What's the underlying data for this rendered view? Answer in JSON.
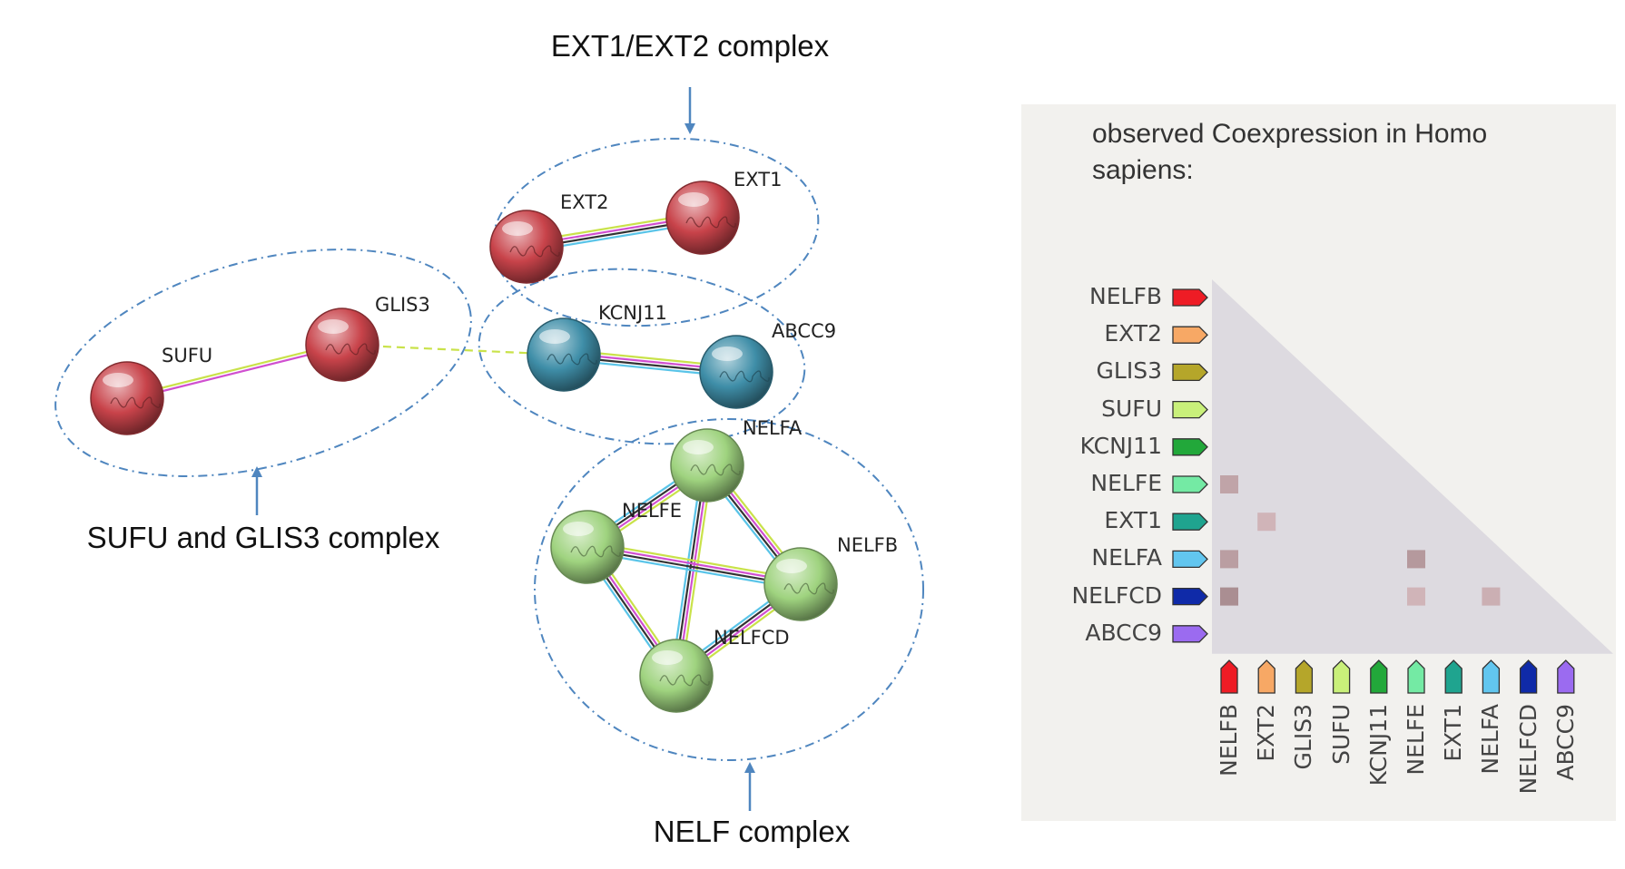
{
  "network": {
    "complexes": [
      {
        "id": "ext",
        "label": "EXT1/EXT2 complex"
      },
      {
        "id": "sufu",
        "label": "SUFU and GLIS3 complex"
      },
      {
        "id": "nelf",
        "label": "NELF complex"
      }
    ],
    "nodes": [
      {
        "id": "EXT2",
        "label": "EXT2",
        "color": "#c8434a"
      },
      {
        "id": "EXT1",
        "label": "EXT1",
        "color": "#c8434a"
      },
      {
        "id": "SUFU",
        "label": "SUFU",
        "color": "#c8434a"
      },
      {
        "id": "GLIS3",
        "label": "GLIS3",
        "color": "#c8434a"
      },
      {
        "id": "KCNJ11",
        "label": "KCNJ11",
        "color": "#3f8ea8"
      },
      {
        "id": "ABCC9",
        "label": "ABCC9",
        "color": "#3f8ea8"
      },
      {
        "id": "NELFA",
        "label": "NELFA",
        "color": "#9fd37f"
      },
      {
        "id": "NELFE",
        "label": "NELFE",
        "color": "#9fd37f"
      },
      {
        "id": "NELFB",
        "label": "NELFB",
        "color": "#9fd37f"
      },
      {
        "id": "NELFCD",
        "label": "NELFCD",
        "color": "#9fd37f"
      }
    ],
    "edges": [
      {
        "from": "EXT2",
        "to": "EXT1",
        "colors": [
          "#c9e24a",
          "#d04fd0",
          "#333333",
          "#59c4e8"
        ]
      },
      {
        "from": "SUFU",
        "to": "GLIS3",
        "colors": [
          "#c9e24a",
          "#d04fd0"
        ]
      },
      {
        "from": "GLIS3",
        "to": "KCNJ11",
        "colors": [
          "#c9e24a"
        ],
        "dashed": true
      },
      {
        "from": "KCNJ11",
        "to": "ABCC9",
        "colors": [
          "#c9e24a",
          "#d04fd0",
          "#333333",
          "#59c4e8"
        ]
      },
      {
        "from": "NELFA",
        "to": "NELFE",
        "colors": [
          "#c9e24a",
          "#d04fd0",
          "#333333",
          "#59c4e8"
        ]
      },
      {
        "from": "NELFA",
        "to": "NELFB",
        "colors": [
          "#c9e24a",
          "#d04fd0",
          "#333333",
          "#59c4e8"
        ]
      },
      {
        "from": "NELFA",
        "to": "NELFCD",
        "colors": [
          "#c9e24a",
          "#d04fd0",
          "#333333",
          "#59c4e8"
        ]
      },
      {
        "from": "NELFE",
        "to": "NELFB",
        "colors": [
          "#c9e24a",
          "#d04fd0",
          "#333333",
          "#59c4e8"
        ]
      },
      {
        "from": "NELFE",
        "to": "NELFCD",
        "colors": [
          "#c9e24a",
          "#d04fd0",
          "#333333",
          "#59c4e8"
        ]
      },
      {
        "from": "NELFB",
        "to": "NELFCD",
        "colors": [
          "#c9e24a",
          "#d04fd0",
          "#333333",
          "#59c4e8"
        ]
      }
    ]
  },
  "coexpression": {
    "title": "observed Coexpression in Homo sapiens:",
    "genes": [
      {
        "name": "NELFB",
        "color": "#ee1c25"
      },
      {
        "name": "EXT2",
        "color": "#f7a865"
      },
      {
        "name": "GLIS3",
        "color": "#b5a62a"
      },
      {
        "name": "SUFU",
        "color": "#c9f07a"
      },
      {
        "name": "KCNJ11",
        "color": "#22a83a"
      },
      {
        "name": "NELFE",
        "color": "#74eaa4"
      },
      {
        "name": "EXT1",
        "color": "#1fa48f"
      },
      {
        "name": "NELFA",
        "color": "#62c6ef"
      },
      {
        "name": "NELFCD",
        "color": "#0f2aa8"
      },
      {
        "name": "ABCC9",
        "color": "#9b6bf0"
      }
    ],
    "cells": [
      {
        "row": "NELFE",
        "col": "NELFB",
        "level": 0.35
      },
      {
        "row": "EXT1",
        "col": "EXT2",
        "level": 0.2
      },
      {
        "row": "NELFA",
        "col": "NELFB",
        "level": 0.4
      },
      {
        "row": "NELFA",
        "col": "NELFE",
        "level": 0.45
      },
      {
        "row": "NELFCD",
        "col": "NELFB",
        "level": 0.55
      },
      {
        "row": "NELFCD",
        "col": "NELFE",
        "level": 0.2
      },
      {
        "row": "NELFCD",
        "col": "NELFA",
        "level": 0.25
      }
    ]
  }
}
